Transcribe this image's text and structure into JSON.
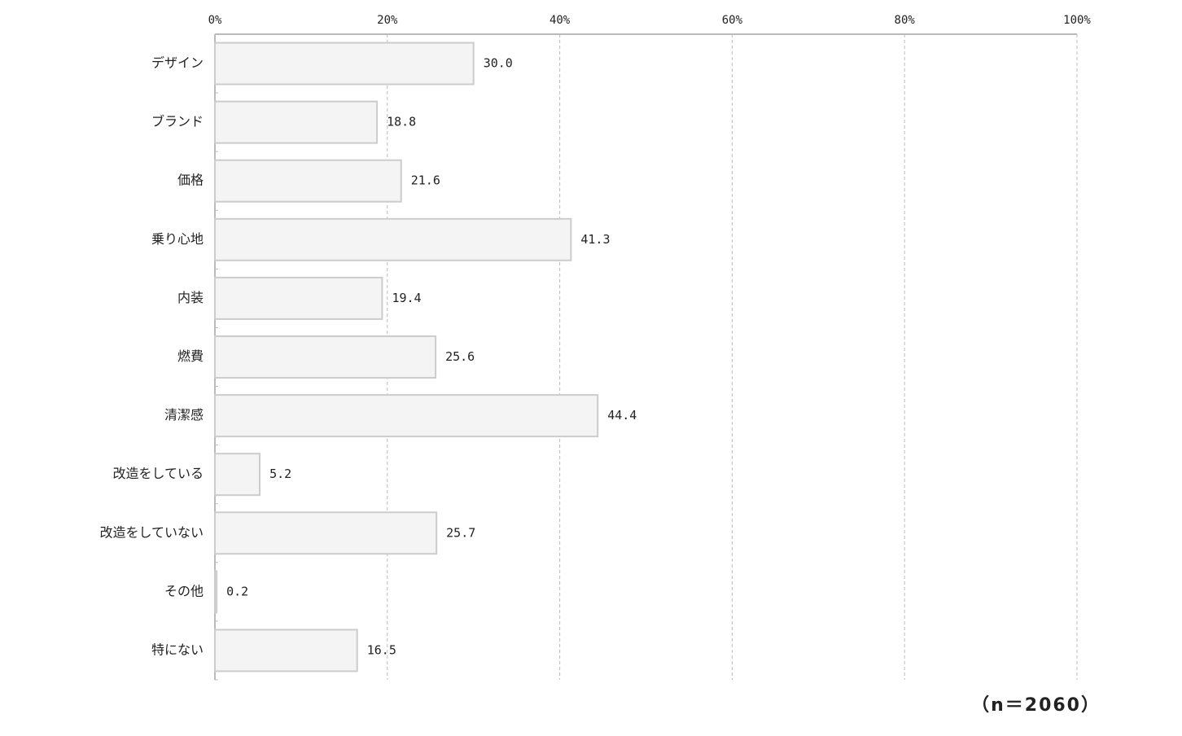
{
  "chart_data": {
    "type": "bar",
    "orientation": "horizontal",
    "categories": [
      "デザイン",
      "ブランド",
      "価格",
      "乗り心地",
      "内装",
      "燃費",
      "清潔感",
      "改造をしている",
      "改造をしていない",
      "その他",
      "特にない"
    ],
    "values": [
      30.0,
      18.8,
      21.6,
      41.3,
      19.4,
      25.6,
      44.4,
      5.2,
      25.7,
      0.2,
      16.5
    ],
    "value_labels": [
      "30.0",
      "18.8",
      "21.6",
      "41.3",
      "19.4",
      "25.6",
      "44.4",
      "5.2",
      "25.7",
      "0.2",
      "16.5"
    ],
    "color": "#f4f4f4",
    "xlim": [
      0,
      100
    ],
    "xticks": [
      {
        "value": 0,
        "label": "0%"
      },
      {
        "value": 20,
        "label": "20%"
      },
      {
        "value": 40,
        "label": "40%"
      },
      {
        "value": 60,
        "label": "60%"
      },
      {
        "value": 80,
        "label": "80%"
      },
      {
        "value": 100,
        "label": "100%"
      }
    ],
    "grid": true,
    "annotation": "（n＝2060）"
  }
}
